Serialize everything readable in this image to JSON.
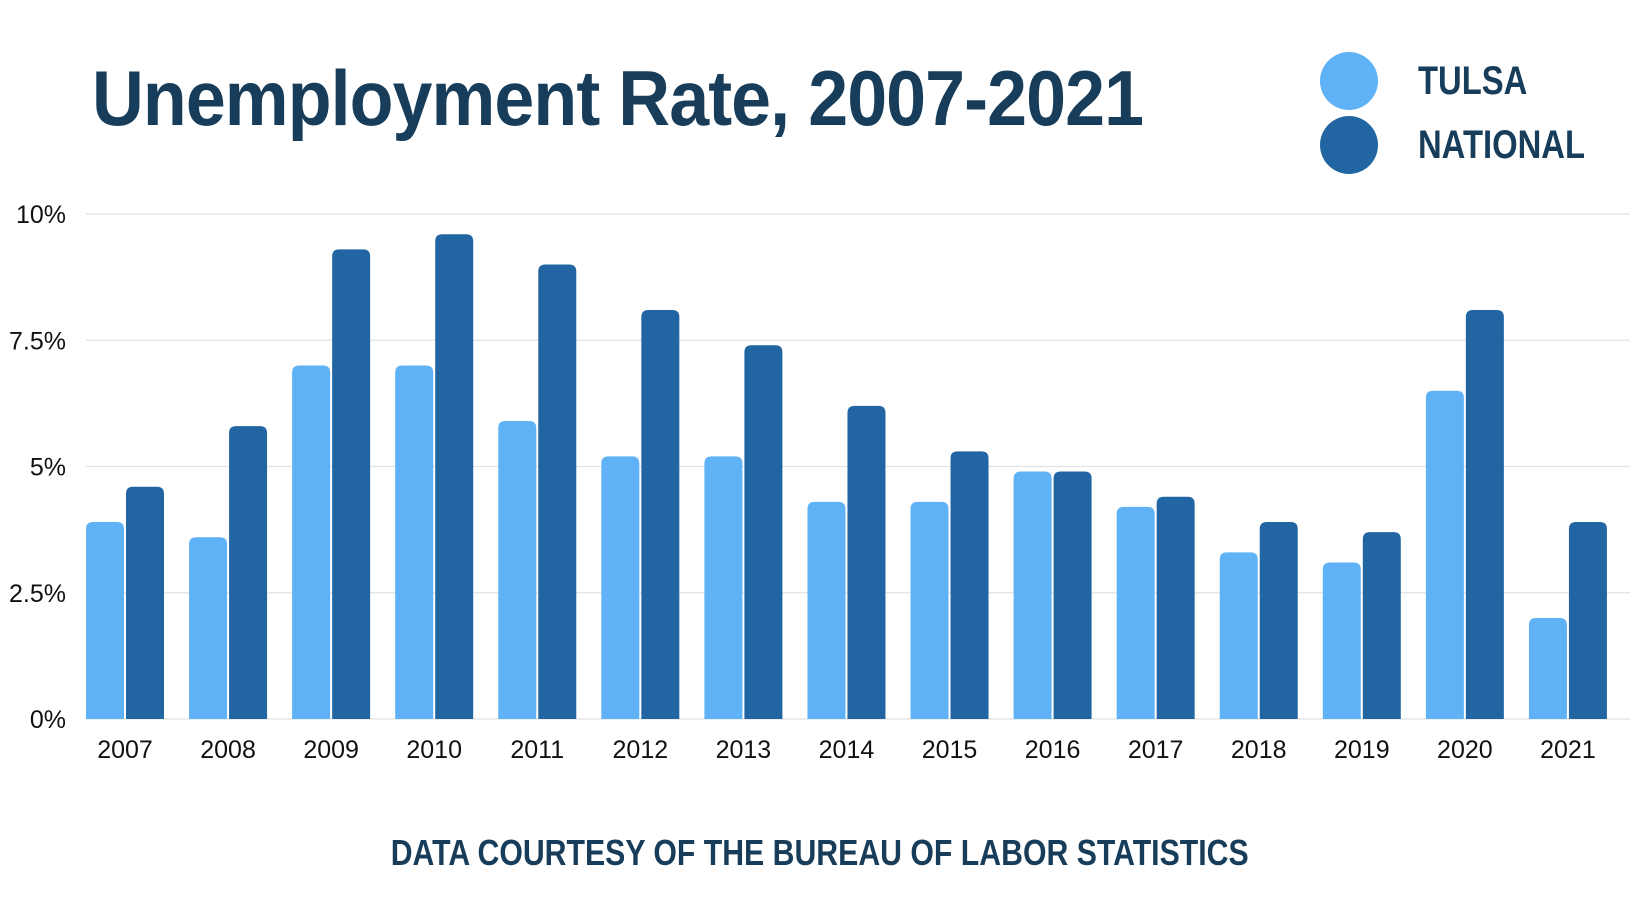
{
  "chart_data": {
    "type": "bar",
    "title": "Unemployment Rate, 2007-2021",
    "categories": [
      "2007",
      "2008",
      "2009",
      "2010",
      "2011",
      "2012",
      "2013",
      "2014",
      "2015",
      "2016",
      "2017",
      "2018",
      "2019",
      "2020",
      "2021"
    ],
    "series": [
      {
        "name": "TULSA",
        "color": "#5fb2f6",
        "values": [
          3.9,
          3.6,
          7.0,
          7.0,
          5.9,
          5.2,
          5.2,
          4.3,
          4.3,
          4.9,
          4.2,
          3.3,
          3.1,
          6.5,
          2.0
        ]
      },
      {
        "name": "NATIONAL",
        "color": "#2166a3",
        "values": [
          4.6,
          5.8,
          9.3,
          9.6,
          9.0,
          8.1,
          7.4,
          6.2,
          5.3,
          4.9,
          4.4,
          3.9,
          3.7,
          8.1,
          3.9
        ]
      }
    ],
    "ylim": [
      0,
      10
    ],
    "yticks": [
      0,
      2.5,
      5,
      7.5,
      10
    ],
    "ytick_labels": [
      "0%",
      "2.5%",
      "5%",
      "7.5%",
      "10%"
    ],
    "xlabel": "",
    "ylabel": "",
    "grid": true,
    "legend_position": "top-right"
  },
  "footer": {
    "note": "DATA COURTESY OF THE BUREAU OF LABOR STATISTICS"
  },
  "colors": {
    "title_text": "#173d5a",
    "gridline": "#e2e2e2",
    "axis_text": "#111111"
  }
}
